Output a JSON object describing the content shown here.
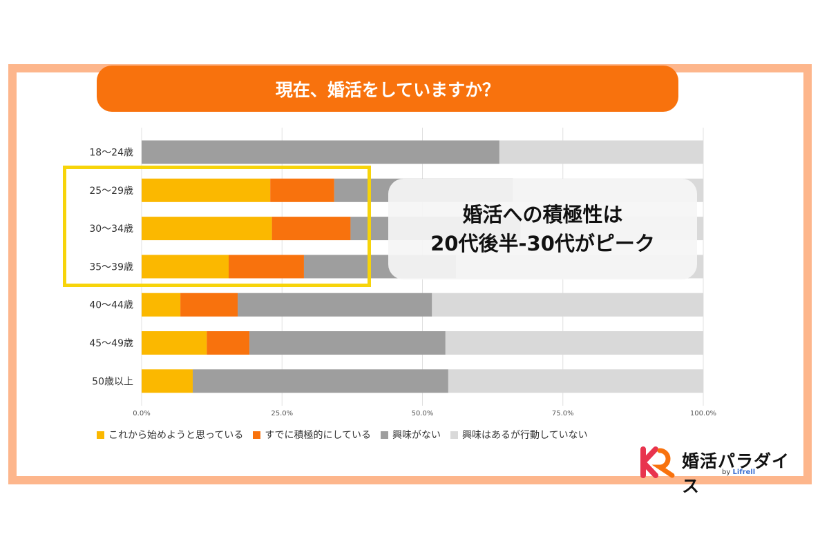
{
  "title": "現在、婚活をしていますか？",
  "callout": {
    "line1": "婚活への積極性は",
    "line2": "20代後半-30代がピーク"
  },
  "brand": {
    "name": "婚活パラダイス",
    "by": "by",
    "company": "Lifrell",
    "colors": {
      "primary": "#E8344E",
      "secondary": "#F8720D"
    }
  },
  "chart_data": {
    "type": "bar",
    "orientation": "horizontal",
    "stacked": true,
    "categories": [
      "18〜24歳",
      "25〜29歳",
      "30〜34歳",
      "35〜39歳",
      "40〜44歳",
      "45〜49歳",
      "50歳以上"
    ],
    "series": [
      {
        "name": "これから始めようと思っている",
        "color": "#FBB800",
        "values": [
          0,
          22.9,
          23.2,
          15.5,
          6.9,
          11.6,
          9.1
        ]
      },
      {
        "name": "すでに積極的にしている",
        "color": "#F8720D",
        "values": [
          0,
          11.4,
          14.0,
          13.4,
          10.2,
          7.6,
          0
        ]
      },
      {
        "name": "興味がない",
        "color": "#9E9E9E",
        "values": [
          63.7,
          31.8,
          30.3,
          27.1,
          34.6,
          34.9,
          45.5
        ]
      },
      {
        "name": "興味はあるが行動していない",
        "color": "#D9D9D9",
        "values": [
          36.3,
          33.9,
          32.5,
          44.0,
          48.3,
          45.9,
          45.4
        ]
      }
    ],
    "xlim": [
      0,
      100
    ],
    "ticks": [
      "0.0%",
      "25.0%",
      "50.0%",
      "75.0%",
      "100.0%"
    ],
    "tick_values": [
      0,
      25,
      50,
      75,
      100
    ],
    "grid": true,
    "legend": "bottom"
  }
}
